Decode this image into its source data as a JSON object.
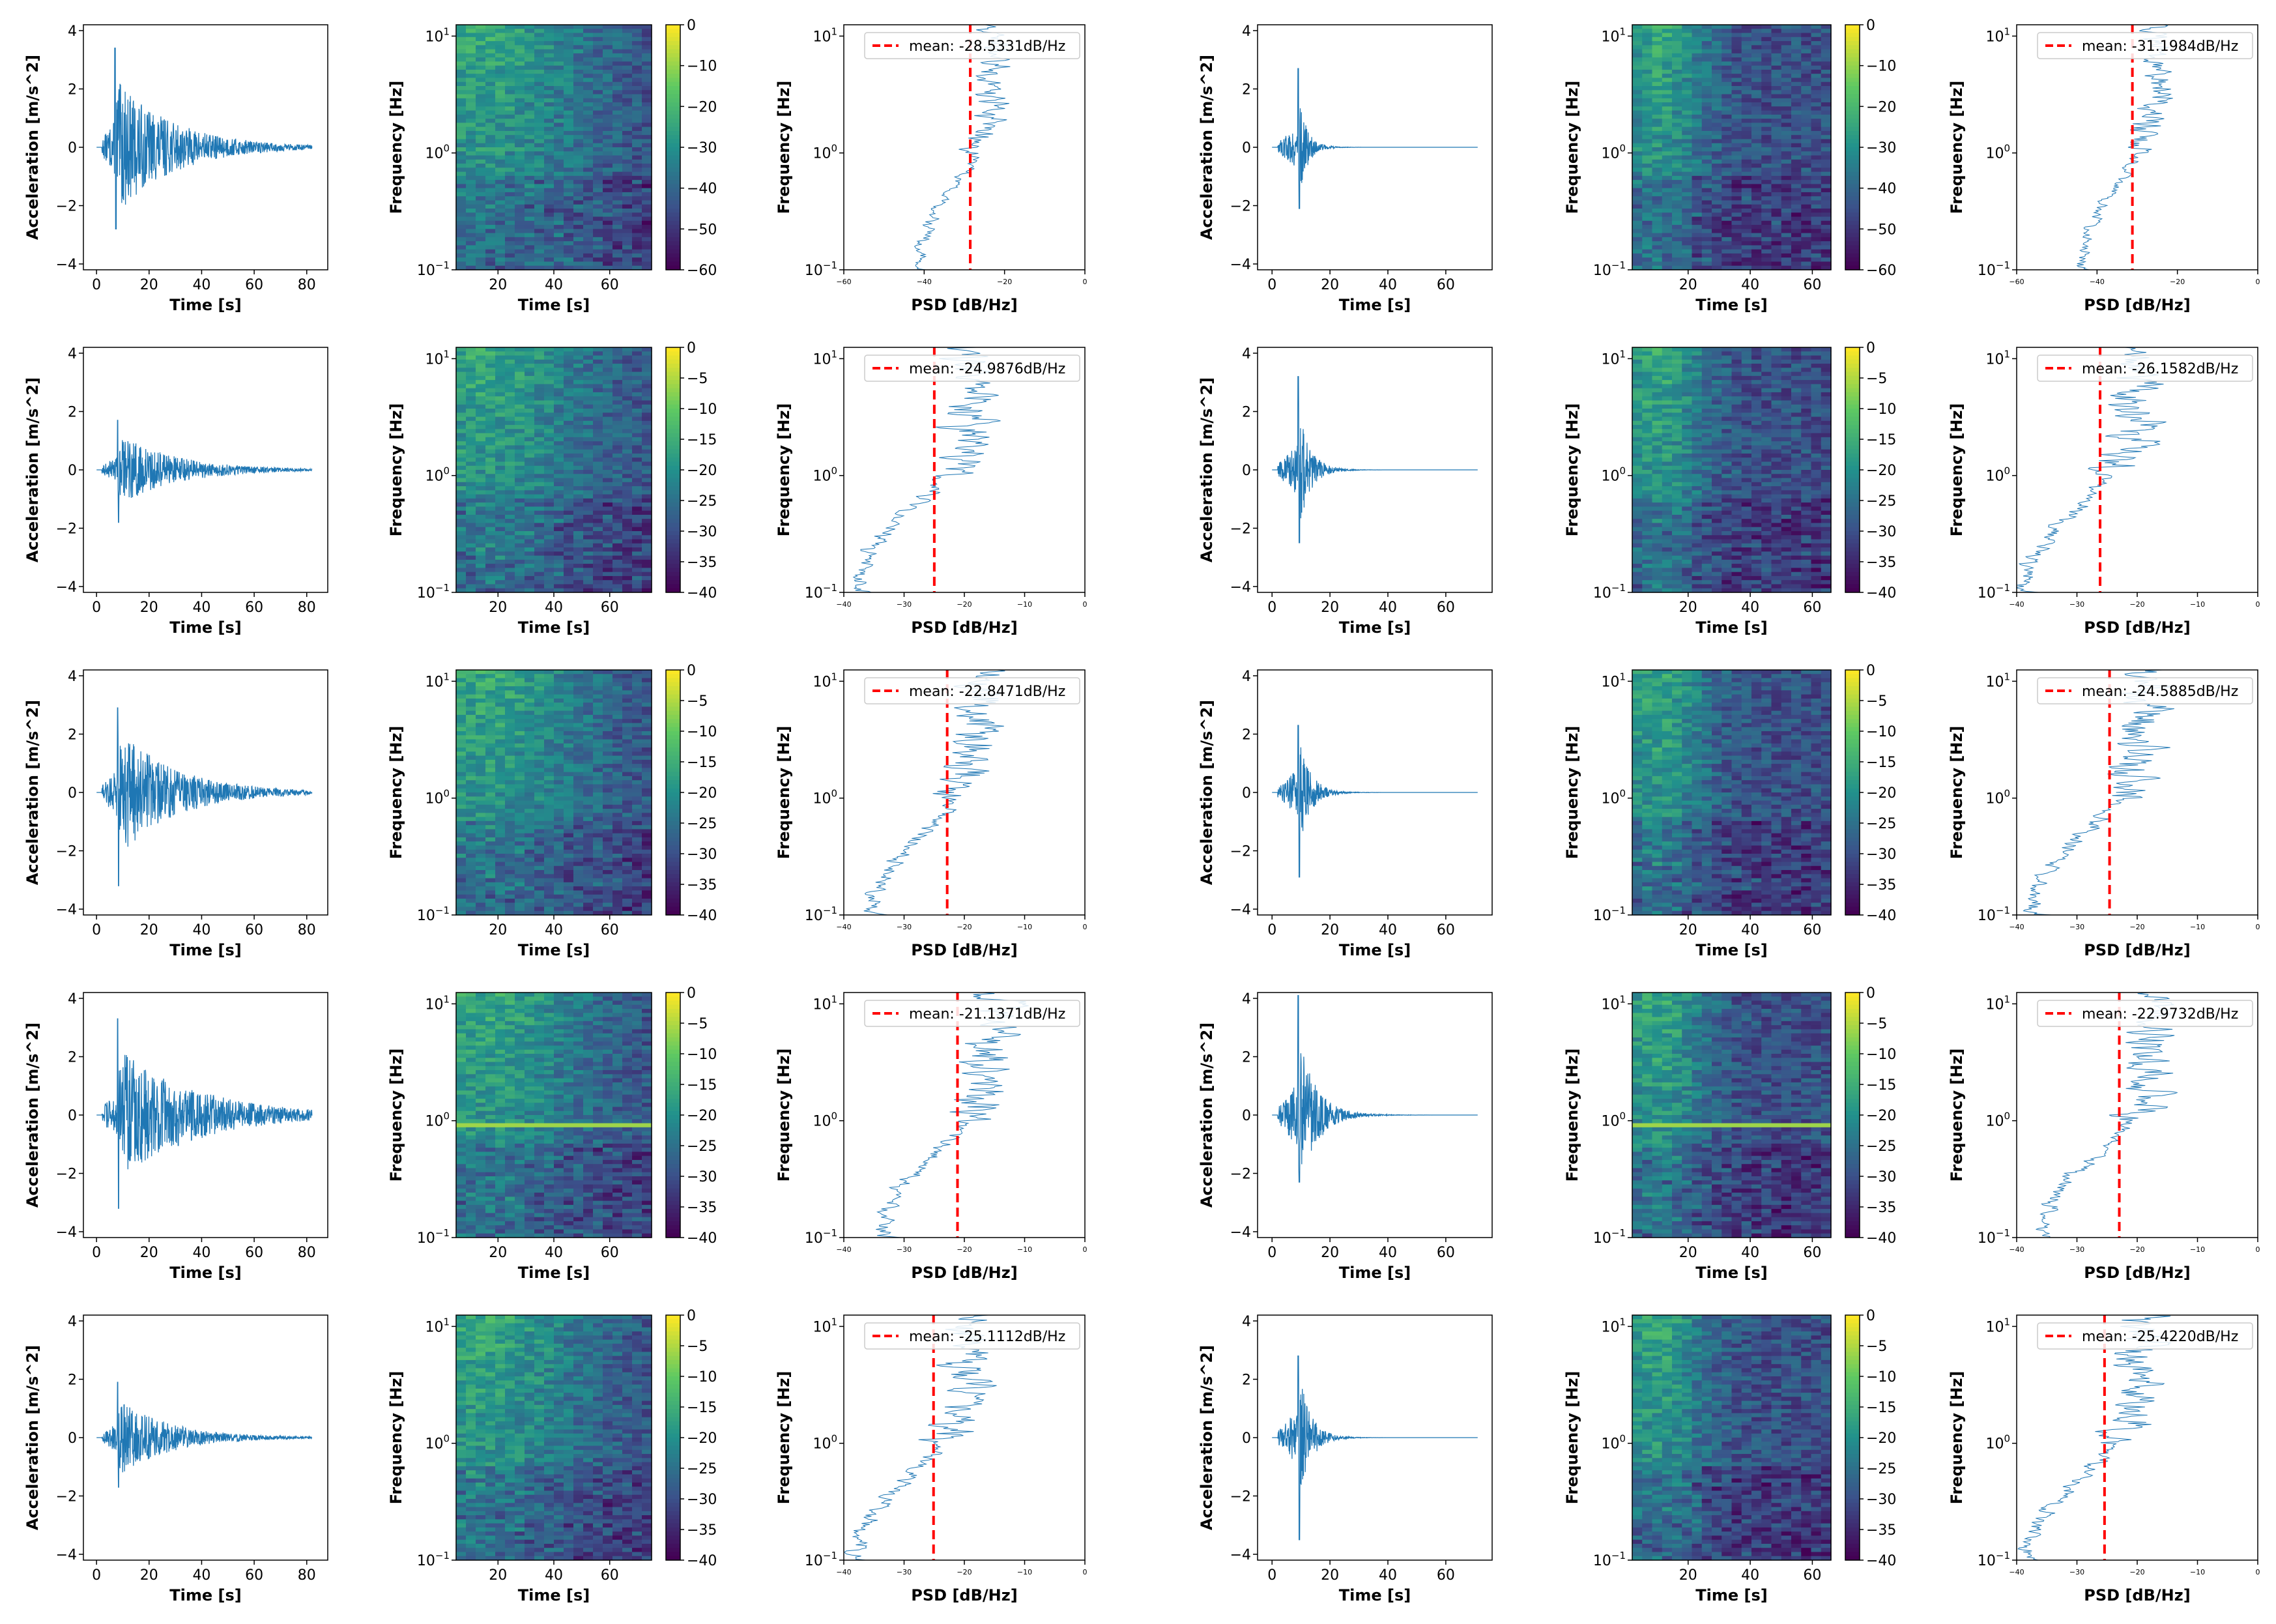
{
  "chart_data": [
    {
      "row": 0,
      "col": 0,
      "type": "line",
      "kind": "wave",
      "title": "",
      "xlabel": "Time [s]",
      "ylabel": "Acceleration [m/s^2]",
      "xlim": [
        -5,
        88
      ],
      "ylim": [
        -4.2,
        4.2
      ],
      "xticks": [
        "0",
        "20",
        "40",
        "60",
        "80"
      ],
      "yticks": [
        "−4",
        "−2",
        "0",
        "2",
        "4"
      ],
      "duration": 82,
      "peak_time": 7,
      "peak": 3.4,
      "trough": -2.8,
      "decay": 22,
      "color": "#1f77b4"
    },
    {
      "row": 0,
      "col": 1,
      "type": "heatmap",
      "kind": "spec",
      "xlabel": "Time [s]",
      "ylabel": "Frequency [Hz]",
      "xlim": [
        5,
        75
      ],
      "yscale": "log",
      "ylim": [
        0.1,
        12.5
      ],
      "xticks": [
        "20",
        "40",
        "60"
      ],
      "yticks": [
        "10^1",
        "10^0",
        "10^−1"
      ],
      "colorbar": {
        "min": -60,
        "max": 0,
        "ticks": [
          "0",
          "−10",
          "−20",
          "−30",
          "−40",
          "−50",
          "−60"
        ],
        "colormap": "viridis"
      }
    },
    {
      "row": 0,
      "col": 2,
      "type": "line",
      "kind": "psd",
      "xlabel": "PSD [dB/Hz]",
      "ylabel": "Frequency [Hz]",
      "xlim": [
        -60,
        0
      ],
      "xticks": [
        "−60",
        "−40",
        "−20",
        "0"
      ],
      "yscale": "log",
      "ylim": [
        0.1,
        12.5
      ],
      "yticks": [
        "10^1",
        "10^0",
        "10^−1"
      ],
      "mean": -28.5331,
      "legend": "mean: -28.5331dB/Hz"
    },
    {
      "row": 0,
      "col": 3,
      "type": "line",
      "kind": "wave",
      "xlabel": "Time [s]",
      "ylabel": "Acceleration [m/s^2]",
      "xlim": [
        -5,
        76
      ],
      "ylim": [
        -4.2,
        4.2
      ],
      "xticks": [
        "0",
        "20",
        "40",
        "60"
      ],
      "yticks": [
        "−4",
        "−2",
        "0",
        "2",
        "4"
      ],
      "duration": 71,
      "peak_time": 9,
      "peak": 2.7,
      "trough": -2.1,
      "decay": 3,
      "color": "#1f77b4"
    },
    {
      "row": 0,
      "col": 4,
      "type": "heatmap",
      "kind": "spec",
      "xlabel": "Time [s]",
      "ylabel": "Frequency [Hz]",
      "xlim": [
        2,
        66
      ],
      "yscale": "log",
      "ylim": [
        0.1,
        12.5
      ],
      "xticks": [
        "20",
        "40",
        "60"
      ],
      "yticks": [
        "10^1",
        "10^0",
        "10^−1"
      ],
      "colorbar": {
        "min": -60,
        "max": 0,
        "ticks": [
          "0",
          "−10",
          "−20",
          "−30",
          "−40",
          "−50",
          "−60"
        ],
        "colormap": "viridis"
      }
    },
    {
      "row": 0,
      "col": 5,
      "type": "line",
      "kind": "psd",
      "xlabel": "PSD [dB/Hz]",
      "ylabel": "Frequency [Hz]",
      "xlim": [
        -60,
        0
      ],
      "xticks": [
        "−60",
        "−40",
        "−20",
        "0"
      ],
      "yscale": "log",
      "ylim": [
        0.1,
        12.5
      ],
      "yticks": [
        "10^1",
        "10^0",
        "10^−1"
      ],
      "mean": -31.1984,
      "legend": "mean: -31.1984dB/Hz"
    },
    {
      "row": 1,
      "col": 0,
      "type": "line",
      "kind": "wave",
      "xlabel": "Time [s]",
      "ylabel": "Acceleration [m/s^2]",
      "xlim": [
        -5,
        88
      ],
      "ylim": [
        -4.2,
        4.2
      ],
      "xticks": [
        "0",
        "20",
        "40",
        "60",
        "80"
      ],
      "yticks": [
        "−4",
        "−2",
        "0",
        "2",
        "4"
      ],
      "duration": 82,
      "peak_time": 8,
      "peak": 1.7,
      "trough": -1.8,
      "decay": 22,
      "color": "#1f77b4"
    },
    {
      "row": 1,
      "col": 1,
      "type": "heatmap",
      "kind": "spec",
      "xlabel": "Time [s]",
      "ylabel": "Frequency [Hz]",
      "xlim": [
        5,
        75
      ],
      "yscale": "log",
      "ylim": [
        0.1,
        12.5
      ],
      "xticks": [
        "20",
        "40",
        "60"
      ],
      "yticks": [
        "10^1",
        "10^0",
        "10^−1"
      ],
      "colorbar": {
        "min": -40,
        "max": 0,
        "ticks": [
          "0",
          "−5",
          "−10",
          "−15",
          "−20",
          "−25",
          "−30",
          "−35",
          "−40"
        ],
        "colormap": "viridis"
      }
    },
    {
      "row": 1,
      "col": 2,
      "type": "line",
      "kind": "psd",
      "xlabel": "PSD [dB/Hz]",
      "ylabel": "Frequency [Hz]",
      "xlim": [
        -40,
        0
      ],
      "xticks": [
        "−40",
        "−30",
        "−20",
        "−10",
        "0"
      ],
      "yscale": "log",
      "ylim": [
        0.1,
        12.5
      ],
      "yticks": [
        "10^1",
        "10^0",
        "10^−1"
      ],
      "mean": -24.9876,
      "legend": "mean: -24.9876dB/Hz"
    },
    {
      "row": 1,
      "col": 3,
      "type": "line",
      "kind": "wave",
      "xlabel": "Time [s]",
      "ylabel": "Acceleration [m/s^2]",
      "xlim": [
        -5,
        76
      ],
      "ylim": [
        -4.2,
        4.2
      ],
      "xticks": [
        "0",
        "20",
        "40",
        "60"
      ],
      "yticks": [
        "−4",
        "−2",
        "0",
        "2",
        "4"
      ],
      "duration": 71,
      "peak_time": 9,
      "peak": 3.2,
      "trough": -2.5,
      "decay": 4,
      "color": "#1f77b4"
    },
    {
      "row": 1,
      "col": 4,
      "type": "heatmap",
      "kind": "spec",
      "xlabel": "Time [s]",
      "ylabel": "Frequency [Hz]",
      "xlim": [
        2,
        66
      ],
      "yscale": "log",
      "ylim": [
        0.1,
        12.5
      ],
      "xticks": [
        "20",
        "40",
        "60"
      ],
      "yticks": [
        "10^1",
        "10^0",
        "10^−1"
      ],
      "colorbar": {
        "min": -40,
        "max": 0,
        "ticks": [
          "0",
          "−5",
          "−10",
          "−15",
          "−20",
          "−25",
          "−30",
          "−35",
          "−40"
        ],
        "colormap": "viridis"
      }
    },
    {
      "row": 1,
      "col": 5,
      "type": "line",
      "kind": "psd",
      "xlabel": "PSD [dB/Hz]",
      "ylabel": "Frequency [Hz]",
      "xlim": [
        -40,
        0
      ],
      "xticks": [
        "−40",
        "−30",
        "−20",
        "−10",
        "0"
      ],
      "yscale": "log",
      "ylim": [
        0.1,
        12.5
      ],
      "yticks": [
        "10^1",
        "10^0",
        "10^−1"
      ],
      "mean": -26.1582,
      "legend": "mean: -26.1582dB/Hz"
    },
    {
      "row": 2,
      "col": 0,
      "type": "line",
      "kind": "wave",
      "xlabel": "Time [s]",
      "ylabel": "Acceleration [m/s^2]",
      "xlim": [
        -5,
        88
      ],
      "ylim": [
        -4.2,
        4.2
      ],
      "xticks": [
        "0",
        "20",
        "40",
        "60",
        "80"
      ],
      "yticks": [
        "−4",
        "−2",
        "0",
        "2",
        "4"
      ],
      "duration": 82,
      "peak_time": 8,
      "peak": 2.9,
      "trough": -3.2,
      "decay": 22,
      "color": "#1f77b4"
    },
    {
      "row": 2,
      "col": 1,
      "type": "heatmap",
      "kind": "spec",
      "xlabel": "Time [s]",
      "ylabel": "Frequency [Hz]",
      "xlim": [
        5,
        75
      ],
      "yscale": "log",
      "ylim": [
        0.1,
        12.5
      ],
      "xticks": [
        "20",
        "40",
        "60"
      ],
      "yticks": [
        "10^1",
        "10^0",
        "10^−1"
      ],
      "colorbar": {
        "min": -40,
        "max": 0,
        "ticks": [
          "0",
          "−5",
          "−10",
          "−15",
          "−20",
          "−25",
          "−30",
          "−35",
          "−40"
        ],
        "colormap": "viridis"
      }
    },
    {
      "row": 2,
      "col": 2,
      "type": "line",
      "kind": "psd",
      "xlabel": "PSD [dB/Hz]",
      "ylabel": "Frequency [Hz]",
      "xlim": [
        -40,
        0
      ],
      "xticks": [
        "−40",
        "−30",
        "−20",
        "−10",
        "0"
      ],
      "yscale": "log",
      "ylim": [
        0.1,
        12.5
      ],
      "yticks": [
        "10^1",
        "10^0",
        "10^−1"
      ],
      "mean": -22.8471,
      "legend": "mean: -22.8471dB/Hz"
    },
    {
      "row": 2,
      "col": 3,
      "type": "line",
      "kind": "wave",
      "xlabel": "Time [s]",
      "ylabel": "Acceleration [m/s^2]",
      "xlim": [
        -5,
        76
      ],
      "ylim": [
        -4.2,
        4.2
      ],
      "xticks": [
        "0",
        "20",
        "40",
        "60"
      ],
      "yticks": [
        "−4",
        "−2",
        "0",
        "2",
        "4"
      ],
      "duration": 71,
      "peak_time": 9,
      "peak": 2.3,
      "trough": -2.9,
      "decay": 4,
      "color": "#1f77b4"
    },
    {
      "row": 2,
      "col": 4,
      "type": "heatmap",
      "kind": "spec",
      "xlabel": "Time [s]",
      "ylabel": "Frequency [Hz]",
      "xlim": [
        2,
        66
      ],
      "yscale": "log",
      "ylim": [
        0.1,
        12.5
      ],
      "xticks": [
        "20",
        "40",
        "60"
      ],
      "yticks": [
        "10^1",
        "10^0",
        "10^−1"
      ],
      "colorbar": {
        "min": -40,
        "max": 0,
        "ticks": [
          "0",
          "−5",
          "−10",
          "−15",
          "−20",
          "−25",
          "−30",
          "−35",
          "−40"
        ],
        "colormap": "viridis"
      }
    },
    {
      "row": 2,
      "col": 5,
      "type": "line",
      "kind": "psd",
      "xlabel": "PSD [dB/Hz]",
      "ylabel": "Frequency [Hz]",
      "xlim": [
        -40,
        0
      ],
      "xticks": [
        "−40",
        "−30",
        "−20",
        "−10",
        "0"
      ],
      "yscale": "log",
      "ylim": [
        0.1,
        12.5
      ],
      "yticks": [
        "10^1",
        "10^0",
        "10^−1"
      ],
      "mean": -24.5885,
      "legend": "mean: -24.5885dB/Hz"
    },
    {
      "row": 3,
      "col": 0,
      "type": "line",
      "kind": "wave",
      "xlabel": "Time [s]",
      "ylabel": "Acceleration [m/s^2]",
      "xlim": [
        -5,
        88
      ],
      "ylim": [
        -4.2,
        4.2
      ],
      "xticks": [
        "0",
        "20",
        "40",
        "60",
        "80"
      ],
      "yticks": [
        "−4",
        "−2",
        "0",
        "2",
        "4"
      ],
      "duration": 82,
      "peak_time": 8,
      "peak": 3.3,
      "trough": -3.2,
      "decay": 30,
      "color": "#1f77b4"
    },
    {
      "row": 3,
      "col": 1,
      "type": "heatmap",
      "kind": "spec",
      "xlabel": "Time [s]",
      "ylabel": "Frequency [Hz]",
      "xlim": [
        5,
        75
      ],
      "yscale": "log",
      "ylim": [
        0.1,
        12.5
      ],
      "xticks": [
        "20",
        "40",
        "60"
      ],
      "yticks": [
        "10^1",
        "10^0",
        "10^−1"
      ],
      "colorbar": {
        "min": -40,
        "max": 0,
        "ticks": [
          "0",
          "−5",
          "−10",
          "−15",
          "−20",
          "−25",
          "−30",
          "−35",
          "−40"
        ],
        "colormap": "viridis"
      }
    },
    {
      "row": 3,
      "col": 2,
      "type": "line",
      "kind": "psd",
      "xlabel": "PSD [dB/Hz]",
      "ylabel": "Frequency [Hz]",
      "xlim": [
        -40,
        0
      ],
      "xticks": [
        "−40",
        "−30",
        "−20",
        "−10",
        "0"
      ],
      "yscale": "log",
      "ylim": [
        0.1,
        12.5
      ],
      "yticks": [
        "10^1",
        "10^0",
        "10^−1"
      ],
      "mean": -21.1371,
      "legend": "mean: -21.1371dB/Hz"
    },
    {
      "row": 3,
      "col": 3,
      "type": "line",
      "kind": "wave",
      "xlabel": "Time [s]",
      "ylabel": "Acceleration [m/s^2]",
      "xlim": [
        -5,
        76
      ],
      "ylim": [
        -4.2,
        4.2
      ],
      "xticks": [
        "0",
        "20",
        "40",
        "60"
      ],
      "yticks": [
        "−4",
        "−2",
        "0",
        "2",
        "4"
      ],
      "duration": 71,
      "peak_time": 9,
      "peak": 4.1,
      "trough": -2.3,
      "decay": 6,
      "color": "#1f77b4"
    },
    {
      "row": 3,
      "col": 4,
      "type": "heatmap",
      "kind": "spec",
      "xlabel": "Time [s]",
      "ylabel": "Frequency [Hz]",
      "xlim": [
        2,
        66
      ],
      "yscale": "log",
      "ylim": [
        0.1,
        12.5
      ],
      "xticks": [
        "20",
        "40",
        "60"
      ],
      "yticks": [
        "10^1",
        "10^0",
        "10^−1"
      ],
      "colorbar": {
        "min": -40,
        "max": 0,
        "ticks": [
          "0",
          "−5",
          "−10",
          "−15",
          "−20",
          "−25",
          "−30",
          "−35",
          "−40"
        ],
        "colormap": "viridis"
      }
    },
    {
      "row": 3,
      "col": 5,
      "type": "line",
      "kind": "psd",
      "xlabel": "PSD [dB/Hz]",
      "ylabel": "Frequency [Hz]",
      "xlim": [
        -40,
        0
      ],
      "xticks": [
        "−40",
        "−30",
        "−20",
        "−10",
        "0"
      ],
      "yscale": "log",
      "ylim": [
        0.1,
        12.5
      ],
      "yticks": [
        "10^1",
        "10^0",
        "10^−1"
      ],
      "mean": -22.9732,
      "legend": "mean: -22.9732dB/Hz"
    },
    {
      "row": 4,
      "col": 0,
      "type": "line",
      "kind": "wave",
      "xlabel": "Time [s]",
      "ylabel": "Acceleration [m/s^2]",
      "xlim": [
        -5,
        88
      ],
      "ylim": [
        -4.2,
        4.2
      ],
      "xticks": [
        "0",
        "20",
        "40",
        "60",
        "80"
      ],
      "yticks": [
        "−4",
        "−2",
        "0",
        "2",
        "4"
      ],
      "duration": 82,
      "peak_time": 8,
      "peak": 1.9,
      "trough": -1.7,
      "decay": 20,
      "color": "#1f77b4"
    },
    {
      "row": 4,
      "col": 1,
      "type": "heatmap",
      "kind": "spec",
      "xlabel": "Time [s]",
      "ylabel": "Frequency [Hz]",
      "xlim": [
        5,
        75
      ],
      "yscale": "log",
      "ylim": [
        0.1,
        12.5
      ],
      "xticks": [
        "20",
        "40",
        "60"
      ],
      "yticks": [
        "10^1",
        "10^0",
        "10^−1"
      ],
      "colorbar": {
        "min": -40,
        "max": 0,
        "ticks": [
          "0",
          "−5",
          "−10",
          "−15",
          "−20",
          "−25",
          "−30",
          "−35",
          "−40"
        ],
        "colormap": "viridis"
      }
    },
    {
      "row": 4,
      "col": 2,
      "type": "line",
      "kind": "psd",
      "xlabel": "PSD [dB/Hz]",
      "ylabel": "Frequency [Hz]",
      "xlim": [
        -40,
        0
      ],
      "xticks": [
        "−40",
        "−30",
        "−20",
        "−10",
        "0"
      ],
      "yscale": "log",
      "ylim": [
        0.1,
        12.5
      ],
      "yticks": [
        "10^1",
        "10^0",
        "10^−1"
      ],
      "mean": -25.1112,
      "legend": "mean: -25.1112dB/Hz"
    },
    {
      "row": 4,
      "col": 3,
      "type": "line",
      "kind": "wave",
      "xlabel": "Time [s]",
      "ylabel": "Acceleration [m/s^2]",
      "xlim": [
        -5,
        76
      ],
      "ylim": [
        -4.2,
        4.2
      ],
      "xticks": [
        "0",
        "20",
        "40",
        "60"
      ],
      "yticks": [
        "−4",
        "−2",
        "0",
        "2",
        "4"
      ],
      "duration": 71,
      "peak_time": 9,
      "peak": 2.8,
      "trough": -3.5,
      "decay": 4,
      "color": "#1f77b4"
    },
    {
      "row": 4,
      "col": 4,
      "type": "heatmap",
      "kind": "spec",
      "xlabel": "Time [s]",
      "ylabel": "Frequency [Hz]",
      "xlim": [
        2,
        66
      ],
      "yscale": "log",
      "ylim": [
        0.1,
        12.5
      ],
      "xticks": [
        "20",
        "40",
        "60"
      ],
      "yticks": [
        "10^1",
        "10^0",
        "10^−1"
      ],
      "colorbar": {
        "min": -40,
        "max": 0,
        "ticks": [
          "0",
          "−5",
          "−10",
          "−15",
          "−20",
          "−25",
          "−30",
          "−35",
          "−40"
        ],
        "colormap": "viridis"
      }
    },
    {
      "row": 4,
      "col": 5,
      "type": "line",
      "kind": "psd",
      "xlabel": "PSD [dB/Hz]",
      "ylabel": "Frequency [Hz]",
      "xlim": [
        -40,
        0
      ],
      "xticks": [
        "−40",
        "−30",
        "−20",
        "−10",
        "0"
      ],
      "yscale": "log",
      "ylim": [
        0.1,
        12.5
      ],
      "yticks": [
        "10^1",
        "10^0",
        "10^−1"
      ],
      "mean": -25.422,
      "legend": "mean: -25.4220dB/Hz"
    }
  ],
  "colors": {
    "wave": "#1f77b4",
    "mean_line": "#ff0000",
    "axis": "#000000"
  }
}
